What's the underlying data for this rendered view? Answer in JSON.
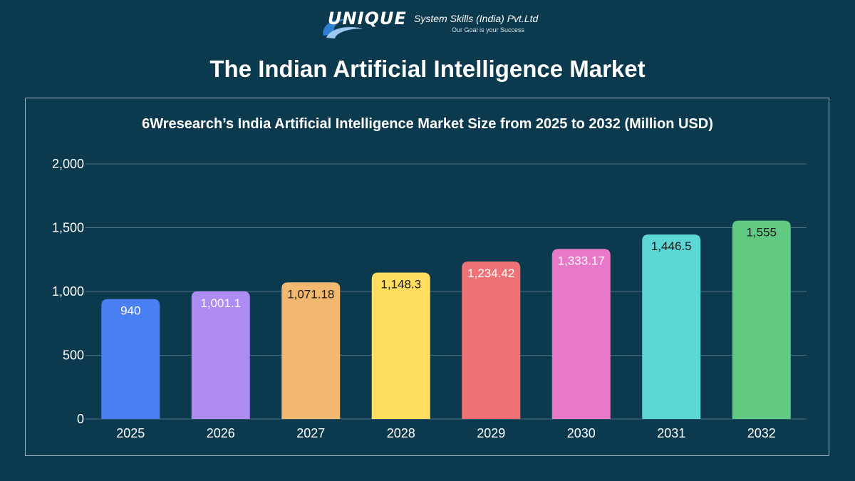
{
  "brand": {
    "wordmark": "UNIQUE",
    "company": "System Skills (India) Pvt.Ltd",
    "tagline": "Our Goal is your Success"
  },
  "page": {
    "title": "The Indian Artificial Intelligence Market"
  },
  "colors": {
    "background": "#0b3a4e",
    "gridline": "#4d6e7c",
    "panel_border": "#9db5c0"
  },
  "chart_data": {
    "type": "bar",
    "title": "6Wresearch’s India Artificial Intelligence Market Size from 2025 to 2032 (Million USD)",
    "xlabel": "",
    "ylabel": "",
    "categories": [
      "2025",
      "2026",
      "2027",
      "2028",
      "2029",
      "2030",
      "2031",
      "2032"
    ],
    "values": [
      940,
      1001.1,
      1071.18,
      1148.3,
      1234.42,
      1333.17,
      1446.5,
      1555
    ],
    "value_labels": [
      "940",
      "1,001.1",
      "1,071.18",
      "1,148.3",
      "1,234.42",
      "1,333.17",
      "1,446.5",
      "1,555"
    ],
    "bar_colors": [
      "#4a7ff2",
      "#ad8bf3",
      "#f2b870",
      "#fedd61",
      "#ee7275",
      "#e878c8",
      "#5cd7d5",
      "#62c983"
    ],
    "label_colors": [
      "#ffffff",
      "#ffffff",
      "#1a1a1a",
      "#1a1a1a",
      "#ffffff",
      "#ffffff",
      "#1a1a1a",
      "#1a1a1a"
    ],
    "ylim": [
      0,
      2000
    ],
    "yticks": [
      0,
      500,
      1000,
      1500,
      2000
    ],
    "ytick_labels": [
      "0",
      "500",
      "1,000",
      "1,500",
      "2,000"
    ],
    "grid": true,
    "legend": false
  }
}
